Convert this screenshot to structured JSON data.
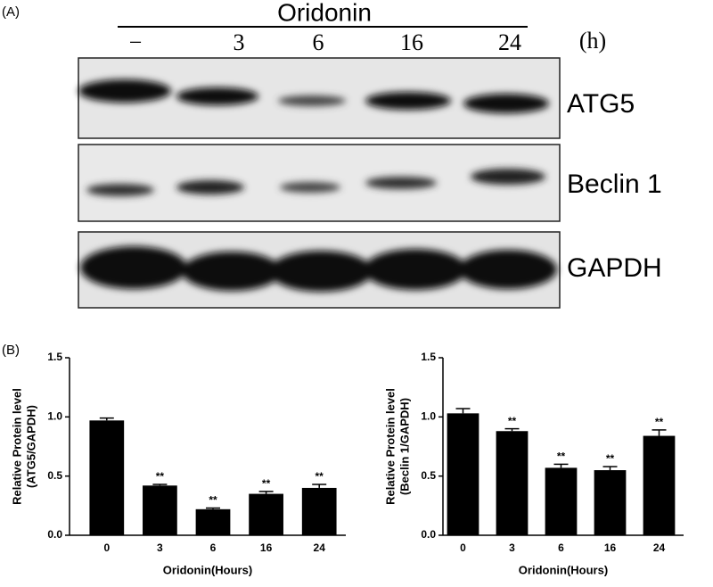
{
  "blot": {
    "panel_label": "(A)",
    "treatment": "Oridonin",
    "lanes": [
      "−",
      "3",
      "6",
      "16",
      "24"
    ],
    "unit": "(h)",
    "bands": [
      "ATG5",
      "Beclin 1",
      "GAPDH"
    ]
  },
  "panel_b_label": "(B)",
  "chart_data": [
    {
      "type": "bar",
      "ylabel": [
        "Relative Protein level",
        "(ATG5/GAPDH)"
      ],
      "xlabel": "Oridonin(Hours)",
      "categories": [
        "0",
        "3",
        "6",
        "16",
        "24"
      ],
      "values": [
        0.97,
        0.42,
        0.22,
        0.35,
        0.4
      ],
      "errors": [
        0.02,
        0.01,
        0.01,
        0.02,
        0.03
      ],
      "annotations": [
        null,
        "**",
        "**",
        "**",
        "**"
      ],
      "color": "#000000",
      "ylim": [
        0,
        1.5
      ],
      "yticks": [
        {
          "value": 0,
          "label": "0.0"
        },
        0.5,
        {
          "value": 1,
          "label": "1.0"
        },
        1.5
      ]
    },
    {
      "type": "bar",
      "ylabel": [
        "Relative Protein level",
        "(Beclin 1/GAPDH)"
      ],
      "xlabel": "Oridonin(Hours)",
      "categories": [
        "0",
        "3",
        "6",
        "16",
        "24"
      ],
      "values": [
        1.03,
        0.88,
        0.57,
        0.55,
        0.84
      ],
      "errors": [
        0.04,
        0.02,
        0.03,
        0.03,
        0.05
      ],
      "annotations": [
        null,
        "**",
        "**",
        "**",
        "**"
      ],
      "color": "#000000",
      "ylim": [
        0,
        1.5
      ],
      "yticks": [
        {
          "value": 0,
          "label": "0.0"
        },
        0.5,
        {
          "value": 1,
          "label": "1.0"
        },
        1.5
      ]
    }
  ]
}
